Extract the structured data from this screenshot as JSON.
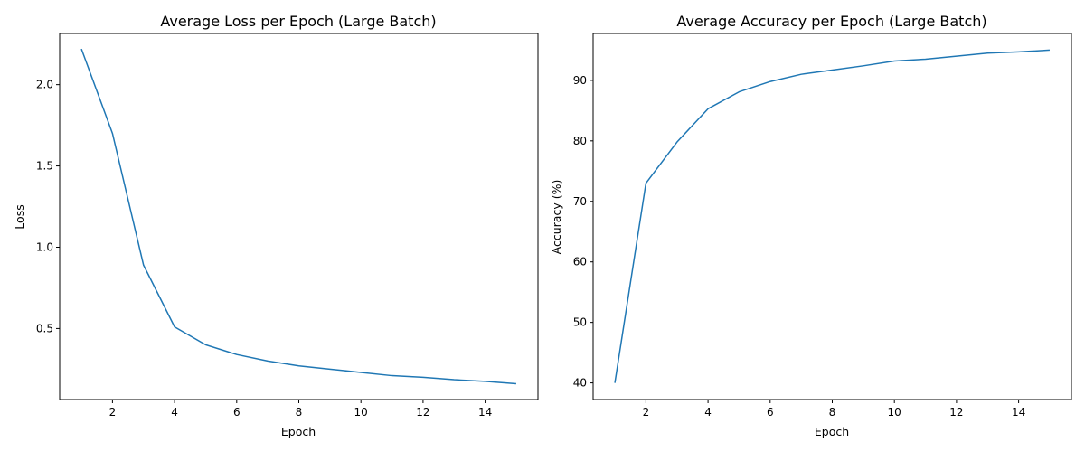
{
  "chart_data": [
    {
      "type": "line",
      "title": "Average Loss per Epoch (Large Batch)",
      "xlabel": "Epoch",
      "ylabel": "Loss",
      "x": [
        1,
        2,
        3,
        4,
        5,
        6,
        7,
        8,
        9,
        10,
        11,
        12,
        13,
        14,
        15
      ],
      "series": [
        {
          "values": [
            2.22,
            1.7,
            0.89,
            0.51,
            0.4,
            0.34,
            0.3,
            0.27,
            0.25,
            0.23,
            0.21,
            0.2,
            0.185,
            0.175,
            0.16
          ],
          "color": "#1f77b4"
        }
      ],
      "xlim": [
        0.3,
        15.7
      ],
      "ylim": [
        0.063,
        2.315
      ],
      "xticks": [
        2,
        4,
        6,
        8,
        10,
        12,
        14
      ],
      "yticks": [
        0.5,
        1.0,
        1.5,
        2.0
      ],
      "ytick_labels": [
        "0.5",
        "1.0",
        "1.5",
        "2.0"
      ],
      "grid": false
    },
    {
      "type": "line",
      "title": "Average Accuracy per Epoch (Large Batch)",
      "xlabel": "Epoch",
      "ylabel": "Accuracy (%)",
      "x": [
        1,
        2,
        3,
        4,
        5,
        6,
        7,
        8,
        9,
        10,
        11,
        12,
        13,
        14,
        15
      ],
      "series": [
        {
          "values": [
            40.0,
            73.0,
            79.8,
            85.3,
            88.1,
            89.8,
            91.0,
            91.7,
            92.4,
            93.2,
            93.5,
            94.0,
            94.5,
            94.7,
            95.0
          ],
          "color": "#1f77b4"
        }
      ],
      "xlim": [
        0.3,
        15.7
      ],
      "ylim": [
        37.25,
        97.75
      ],
      "xticks": [
        2,
        4,
        6,
        8,
        10,
        12,
        14
      ],
      "yticks": [
        40,
        50,
        60,
        70,
        80,
        90
      ],
      "ytick_labels": [
        "40",
        "50",
        "60",
        "70",
        "80",
        "90"
      ],
      "grid": false
    }
  ]
}
